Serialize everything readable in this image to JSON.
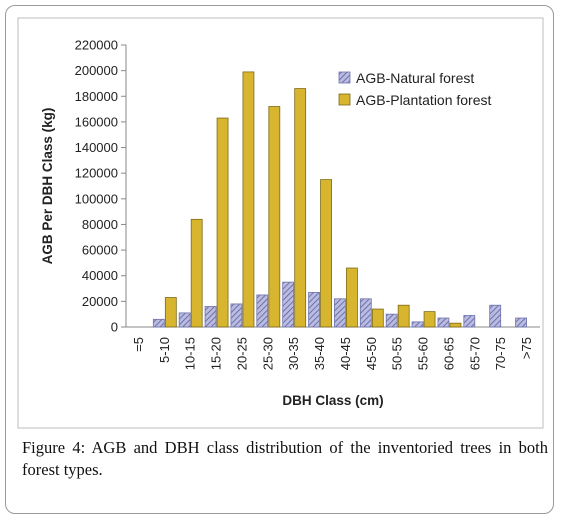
{
  "figure": {
    "caption_label": "Figure 4:",
    "caption_text": " AGB and DBH class distribution of the inventoried trees in both forest types."
  },
  "chart_data": {
    "type": "bar",
    "xlabel": "DBH Class (cm)",
    "ylabel": "AGB Per DBH Class (kg)",
    "ylim": [
      0,
      220000
    ],
    "yticks": [
      0,
      20000,
      40000,
      60000,
      80000,
      100000,
      120000,
      140000,
      160000,
      180000,
      200000,
      220000
    ],
    "categories": [
      "=5",
      "5-10",
      "10-15",
      "15-20",
      "20-25",
      "25-30",
      "30-35",
      "35-40",
      "40-45",
      "45-50",
      "50-55",
      "55-60",
      "60-65",
      "65-70",
      "70-75",
      ">75"
    ],
    "series": [
      {
        "name": "AGB-Natural forest",
        "color": "#8c8fc7",
        "pattern": "hatched",
        "values": [
          0,
          6000,
          11000,
          16000,
          18000,
          25000,
          35000,
          27000,
          22000,
          22000,
          10000,
          4000,
          7000,
          9000,
          17000,
          7000
        ]
      },
      {
        "name": "AGB-Plantation forest",
        "color": "#d7b52f",
        "pattern": "solid",
        "values": [
          0,
          23000,
          84000,
          163000,
          199000,
          172000,
          186000,
          115000,
          46000,
          14000,
          17000,
          12000,
          3000,
          0,
          0,
          0
        ]
      }
    ],
    "legend_position": "top-right",
    "grid": false
  }
}
